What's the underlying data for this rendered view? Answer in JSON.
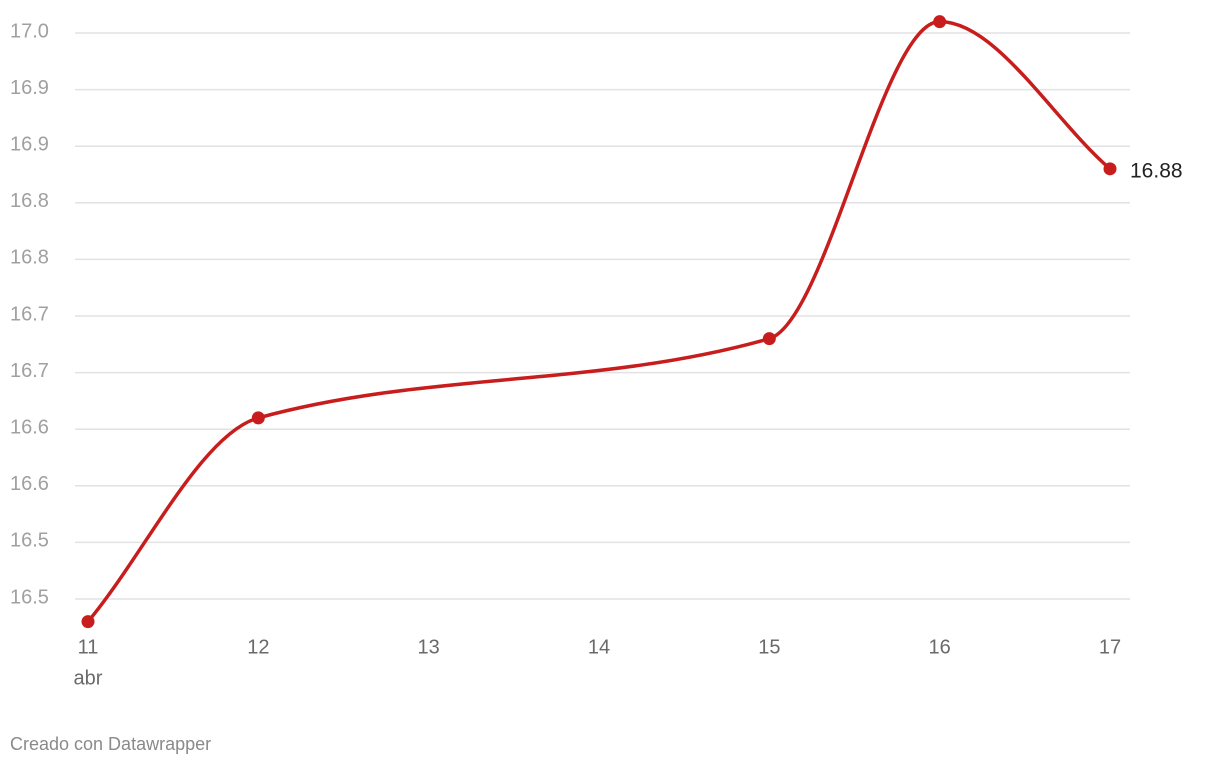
{
  "chart_data": {
    "type": "line",
    "curve": "smooth",
    "color": "#c71e1d",
    "grid": true,
    "x": [
      11,
      12,
      15,
      16,
      17
    ],
    "values": [
      16.48,
      16.66,
      16.73,
      17.01,
      16.88
    ],
    "labelled_point": 4,
    "xlim": [
      11,
      17
    ],
    "xticks": [
      11,
      12,
      13,
      14,
      15,
      16,
      17
    ],
    "x_axis_note": "abr",
    "ylim": [
      16.5,
      17
    ],
    "yticks": [
      {
        "value": 17,
        "label": "17.0"
      },
      {
        "value": 16.95,
        "label": "16.9"
      },
      16.9,
      {
        "value": 16.85,
        "label": "16.8"
      },
      16.8,
      {
        "value": 16.75,
        "label": "16.7"
      },
      16.7,
      {
        "value": 16.65,
        "label": "16.6"
      },
      16.6,
      {
        "value": 16.55,
        "label": "16.5"
      },
      16.5
    ],
    "footer": "Creado con Datawrapper"
  }
}
